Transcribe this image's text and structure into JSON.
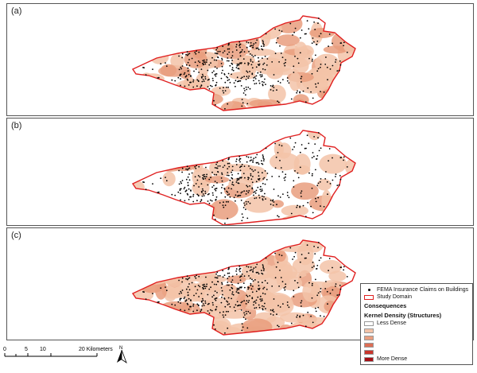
{
  "panels": [
    {
      "label": "(a)",
      "fill_density": "high"
    },
    {
      "label": "(b)",
      "fill_density": "low"
    },
    {
      "label": "(c)",
      "fill_density": "medium"
    }
  ],
  "legend": {
    "claims_label": "FEMA Insurance Claims on Buildings",
    "domain_label": "Study Domain",
    "consequences_heading": "Consequences",
    "kernel_heading": "Kernel Density (Structures)",
    "less_dense_label": "Less Dense",
    "more_dense_label": "More Dense",
    "density_colors": [
      "#ffffff",
      "#f3c3a8",
      "#e99e7e",
      "#dd6e55",
      "#c9362c",
      "#a50f15"
    ]
  },
  "scalebar": {
    "ticks": [
      "0",
      "5",
      "10",
      "20 Kilometers"
    ]
  },
  "north_arrow": {
    "label": "N"
  },
  "colors": {
    "domain_outline": "#e02020",
    "claim_point": "#000000",
    "density_light": "#f3c3a8",
    "density_mid": "#e99e7e"
  }
}
